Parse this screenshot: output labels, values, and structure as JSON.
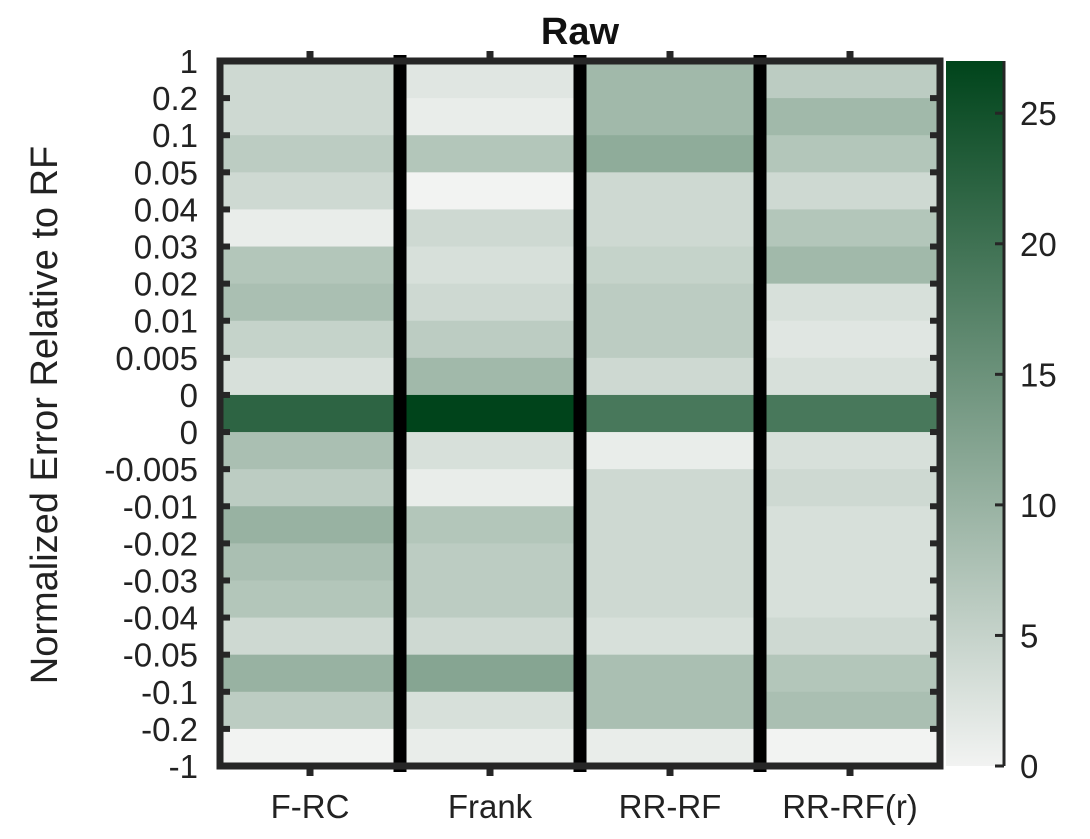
{
  "chart_data": {
    "type": "heatmap",
    "title": "Raw",
    "xlabel": "",
    "ylabel": "Normalized Error Relative to RF",
    "categories": [
      "F-RC",
      "Frank",
      "RR-RF",
      "RR-RF(r)"
    ],
    "y_tick_labels": [
      "1",
      "0.2",
      "0.1",
      "0.05",
      "0.04",
      "0.03",
      "0.02",
      "0.01",
      "0.005",
      "0",
      "0",
      "-0.005",
      "-0.01",
      "-0.02",
      "-0.03",
      "-0.04",
      "-0.05",
      "-0.1",
      "-0.2",
      "-1"
    ],
    "values": [
      [
        4,
        2,
        9,
        6
      ],
      [
        4,
        1,
        9,
        9
      ],
      [
        6,
        7,
        11,
        7
      ],
      [
        4,
        0,
        4,
        4
      ],
      [
        1,
        4,
        4,
        7
      ],
      [
        7,
        3,
        5,
        9
      ],
      [
        8,
        4,
        6,
        3
      ],
      [
        5,
        6,
        6,
        2
      ],
      [
        3,
        9,
        4,
        3
      ],
      [
        22,
        27,
        19,
        19
      ],
      [
        8,
        3,
        1,
        3
      ],
      [
        6,
        1,
        4,
        4
      ],
      [
        10,
        7,
        4,
        3
      ],
      [
        8,
        6,
        4,
        3
      ],
      [
        7,
        6,
        4,
        3
      ],
      [
        4,
        4,
        3,
        4
      ],
      [
        10,
        12,
        8,
        7
      ],
      [
        6,
        3,
        8,
        8
      ],
      [
        0,
        1,
        1,
        0
      ]
    ],
    "colorbar": {
      "min": 0,
      "max": 27,
      "ticks": [
        0,
        5,
        10,
        15,
        20,
        25
      ],
      "color_low": "#f2f3f2",
      "color_high": "#00441b"
    },
    "separator_color": "#000000",
    "frame_color": "#262626"
  }
}
